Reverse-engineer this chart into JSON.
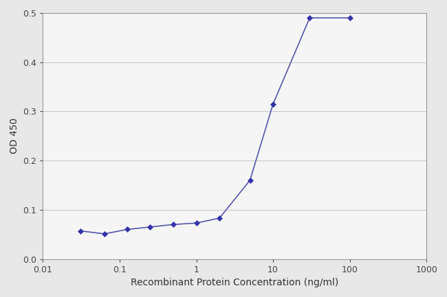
{
  "x_values": [
    0.031,
    0.063,
    0.125,
    0.25,
    0.5,
    1.0,
    2.0,
    5.0,
    10.0,
    30.0,
    100.0
  ],
  "y_values": [
    0.057,
    0.051,
    0.06,
    0.065,
    0.07,
    0.073,
    0.083,
    0.16,
    0.315,
    0.49,
    0.49
  ],
  "line_color": "#5555aa",
  "marker_color": "#3333aa",
  "marker_style": "D",
  "marker_size": 4,
  "line_width": 1.2,
  "xlabel": "Recombinant Protein Concentration (ng/ml)",
  "ylabel": "OD 450",
  "ylim": [
    0.0,
    0.5
  ],
  "yticks": [
    0.0,
    0.1,
    0.2,
    0.3,
    0.4,
    0.5
  ],
  "xtick_labels": [
    "0.01",
    "0.1",
    "1",
    "10",
    "100",
    "1000"
  ],
  "xtick_values": [
    0.01,
    0.1,
    1,
    10,
    100,
    1000
  ],
  "grid_color": "#c8c8c8",
  "background_color": "#e8e8e8",
  "plot_bg_color": "#f5f5f5",
  "label_fontsize": 10,
  "tick_fontsize": 9
}
